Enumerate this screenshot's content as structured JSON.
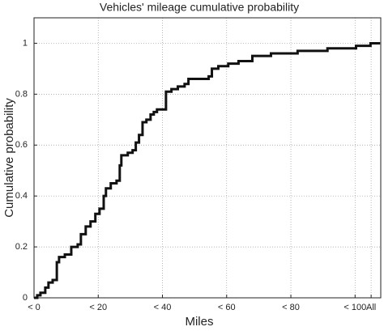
{
  "chart_data": {
    "type": "step",
    "title": "Vehicles' mileage cumulative probability",
    "x_label": "Miles",
    "y_label": "Cumulative probability",
    "x": [
      0,
      1.0,
      2.0,
      3.5,
      4.5,
      5.8,
      7.1,
      7.8,
      9.6,
      11.6,
      13.6,
      14.6,
      16.1,
      17.6,
      19.1,
      20.4,
      21.7,
      22.4,
      23.9,
      25.7,
      26.7,
      27.2,
      29.2,
      30.7,
      31.7,
      32.7,
      33.8,
      35.0,
      36.3,
      37.3,
      38.3,
      41.1,
      42.8,
      44.8,
      46.9,
      48.1,
      49.9,
      54.4,
      55.4,
      57.4,
      60.5,
      63.7,
      68.0,
      73.8,
      82.1,
      91.4,
      100.3,
      104.8,
      107.8
    ],
    "values": [
      0,
      0.01,
      0.02,
      0.04,
      0.06,
      0.07,
      0.14,
      0.16,
      0.17,
      0.2,
      0.21,
      0.25,
      0.28,
      0.3,
      0.33,
      0.35,
      0.4,
      0.43,
      0.45,
      0.46,
      0.52,
      0.56,
      0.57,
      0.58,
      0.61,
      0.64,
      0.69,
      0.7,
      0.72,
      0.73,
      0.74,
      0.81,
      0.82,
      0.83,
      0.84,
      0.86,
      0.86,
      0.87,
      0.9,
      0.91,
      0.92,
      0.93,
      0.95,
      0.96,
      0.97,
      0.98,
      0.99,
      1.0,
      1.0
    ],
    "color": "#111111",
    "xlim": [
      0,
      108
    ],
    "ylim": [
      0,
      1.1
    ],
    "xticks": [
      {
        "value": 0,
        "label": "< 0"
      },
      {
        "value": 20,
        "label": "< 20"
      },
      {
        "value": 40,
        "label": "< 40"
      },
      {
        "value": 60,
        "label": "< 60"
      },
      {
        "value": 80,
        "label": "< 80"
      },
      {
        "value": 100,
        "label": "< 100"
      },
      {
        "value": 105,
        "label": "All"
      }
    ],
    "yticks": [
      0,
      0.2,
      0.4,
      0.6,
      0.8,
      1
    ],
    "grid": true
  }
}
